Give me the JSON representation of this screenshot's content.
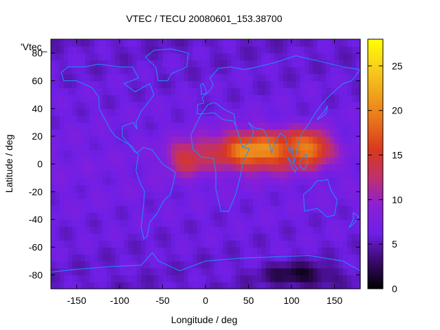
{
  "chart_data": {
    "type": "heatmap",
    "title": "VTEC / TECU 20080601_153.38700",
    "xlabel": "Longitude / deg",
    "ylabel": "Latitude / deg",
    "key_label": "'Vtec_",
    "xlim": [
      -180,
      180
    ],
    "ylim": [
      -90,
      90
    ],
    "x_ticks": [
      -150,
      -100,
      -50,
      0,
      50,
      100,
      150
    ],
    "y_ticks": [
      -80,
      -60,
      -40,
      -20,
      0,
      20,
      40,
      60,
      80
    ],
    "colorbar": {
      "range": [
        0,
        28
      ],
      "ticks": [
        0,
        5,
        10,
        15,
        20,
        25
      ]
    },
    "colormap": [
      "#000000",
      "#3a0a6e",
      "#6f1fe6",
      "#8b1fd6",
      "#c0306e",
      "#d8381e",
      "#e8701b",
      "#f0a21c",
      "#f8d01c",
      "#ffff00"
    ],
    "coastline_color": "#1e90ff",
    "field_features": [
      {
        "lon": 60,
        "lat": 10,
        "value": 21,
        "lon_spread": 55,
        "lat_spread": 14,
        "description_unit": "TECU"
      },
      {
        "lon": 120,
        "lat": 12,
        "value": 20,
        "lon_spread": 25,
        "lat_spread": 12,
        "description_unit": "TECU"
      },
      {
        "lon": -20,
        "lat": 5,
        "value": 15,
        "lon_spread": 25,
        "lat_spread": 12,
        "description_unit": "TECU"
      },
      {
        "lon": 110,
        "lat": -80,
        "value": 1,
        "lon_spread": 40,
        "lat_spread": 8,
        "description_unit": "TECU"
      }
    ],
    "background_value": 7
  }
}
